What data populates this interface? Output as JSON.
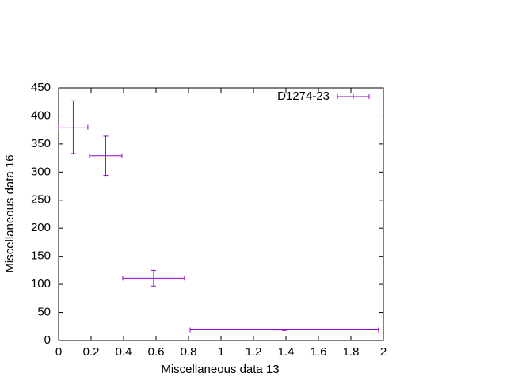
{
  "chart_data": {
    "type": "errorbar",
    "xlabel": "Miscellaneous data 13",
    "ylabel": "Miscellaneous data 16",
    "xlim": [
      0,
      2
    ],
    "xticks": [
      0,
      0.2,
      0.4,
      0.6,
      0.8,
      1,
      1.2,
      1.4,
      1.6,
      1.8,
      2
    ],
    "ylim": [
      0,
      450
    ],
    "yticks": [
      0,
      50,
      100,
      150,
      200,
      250,
      300,
      350,
      400,
      450
    ],
    "legend": "top-right",
    "series": [
      {
        "name": "D1274-23",
        "color": "#9400d3",
        "x": [
          0.09,
          0.29,
          0.585,
          1.39
        ],
        "values": [
          380,
          329,
          111,
          19
        ],
        "xerr": [
          0.09,
          0.1,
          0.19,
          0.58
        ],
        "yerr": [
          47,
          35,
          14,
          1
        ]
      }
    ]
  }
}
